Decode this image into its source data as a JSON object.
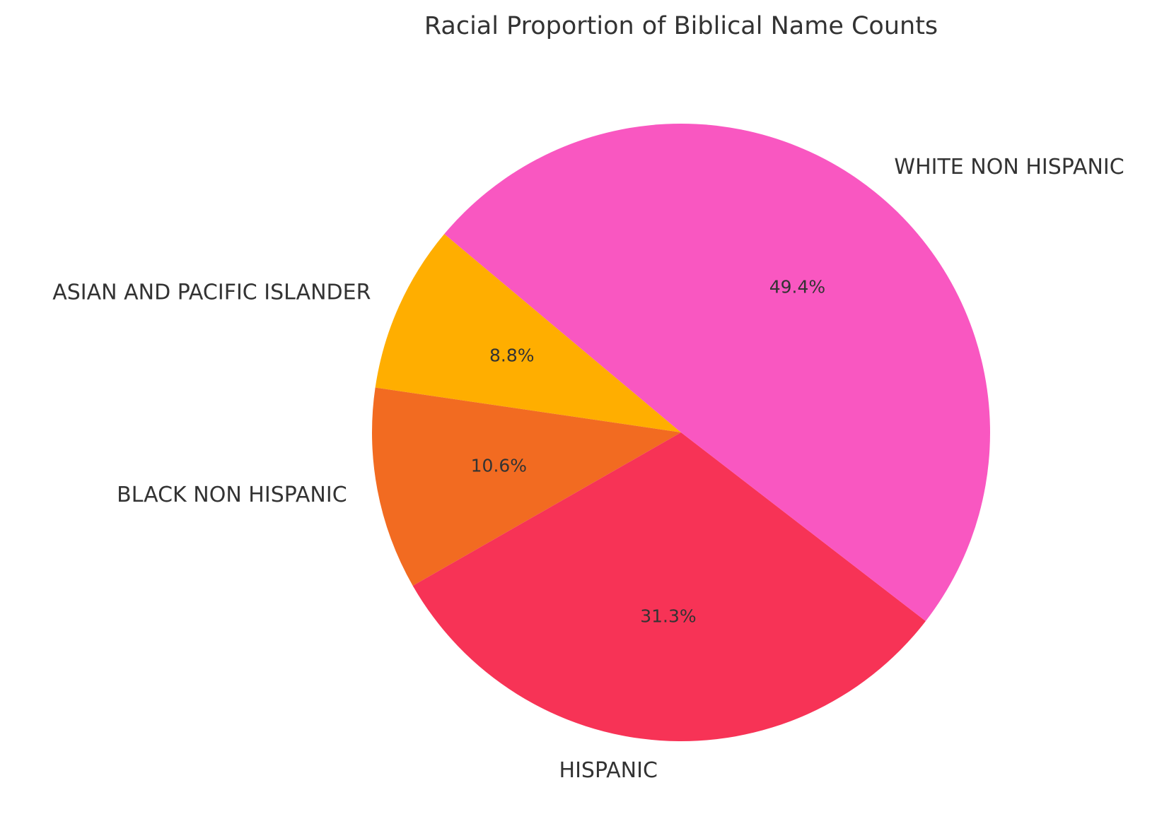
{
  "chart_data": {
    "type": "pie",
    "title": "Racial Proportion of Biblical Name Counts",
    "slices": [
      {
        "label": "ASIAN AND PACIFIC ISLANDER",
        "value": 8.8,
        "percent_label": "8.8%",
        "color": "#FFAE00"
      },
      {
        "label": "BLACK NON HISPANIC",
        "value": 10.6,
        "percent_label": "10.6%",
        "color": "#F26B21"
      },
      {
        "label": "HISPANIC",
        "value": 31.3,
        "percent_label": "31.3%",
        "color": "#F73356"
      },
      {
        "label": "WHITE NON HISPANIC",
        "value": 49.4,
        "percent_label": "49.4%",
        "color": "#F957C1"
      }
    ],
    "start_angle_deg": 140,
    "direction": "counterclockwise",
    "legend": "none"
  }
}
